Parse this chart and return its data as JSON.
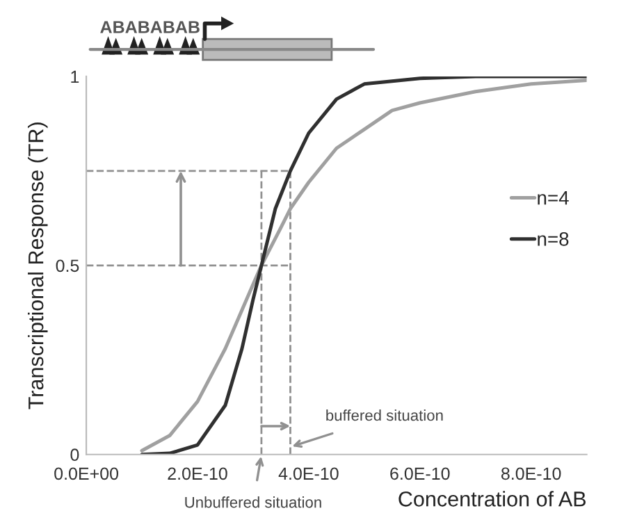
{
  "chart_data": {
    "type": "line",
    "xlabel": "Concentration of AB",
    "ylabel": "Transcriptional Response (TR)",
    "series": [
      {
        "name": "n=4",
        "color": "#a0a0a0",
        "x": [
          1e-10,
          1.5e-10,
          2e-10,
          2.5e-10,
          3e-10,
          3.15e-10,
          3.5e-10,
          3.67e-10,
          4e-10,
          4.5e-10,
          5e-10,
          5.5e-10,
          6e-10,
          7e-10,
          8e-10,
          9e-10
        ],
        "values": [
          0.01,
          0.05,
          0.14,
          0.28,
          0.45,
          0.5,
          0.6,
          0.65,
          0.72,
          0.81,
          0.86,
          0.91,
          0.93,
          0.96,
          0.98,
          0.99
        ]
      },
      {
        "name": "n=8",
        "color": "#303030",
        "x": [
          1e-10,
          1.5e-10,
          2e-10,
          2.5e-10,
          2.8e-10,
          3e-10,
          3.15e-10,
          3.4e-10,
          3.67e-10,
          4e-10,
          4.5e-10,
          5e-10,
          6e-10,
          7e-10,
          9e-10
        ],
        "values": [
          0.0,
          0.003,
          0.025,
          0.13,
          0.28,
          0.41,
          0.5,
          0.65,
          0.75,
          0.85,
          0.94,
          0.98,
          0.995,
          1.0,
          1.0
        ]
      }
    ],
    "xlim": [
      0,
      9e-10
    ],
    "xticks": [
      {
        "value": 0,
        "label": "0.0E+00"
      },
      {
        "value": 2e-10,
        "label": "2.0E-10"
      },
      {
        "value": 4e-10,
        "label": "4.0E-10"
      },
      {
        "value": 6e-10,
        "label": "6.0E-10"
      },
      {
        "value": 8e-10,
        "label": "8.0E-10"
      }
    ],
    "ylim": [
      0,
      1
    ],
    "yticks": [
      0,
      0.5,
      1
    ],
    "ref_lines": [
      {
        "axis": "y",
        "value": 0.5,
        "color": "#909090",
        "line_style": "dashed"
      },
      {
        "axis": "y",
        "value": 0.75,
        "color": "#909090",
        "line_style": "dashed"
      },
      {
        "axis": "x",
        "value": 3.15e-10,
        "color": "#909090",
        "line_style": "dashed"
      },
      {
        "axis": "x",
        "value": 3.67e-10,
        "color": "#909090",
        "line_style": "dashed"
      }
    ],
    "annotations": [
      {
        "text": "buffered situation",
        "x": 3.67e-10,
        "y": 0.02
      },
      {
        "text": "Unbuffered situation",
        "x": 3.15e-10,
        "y": 0
      },
      "ABABABAB"
    ],
    "legend": "right",
    "grid": false,
    "marker": "none",
    "line_style": "solid"
  }
}
